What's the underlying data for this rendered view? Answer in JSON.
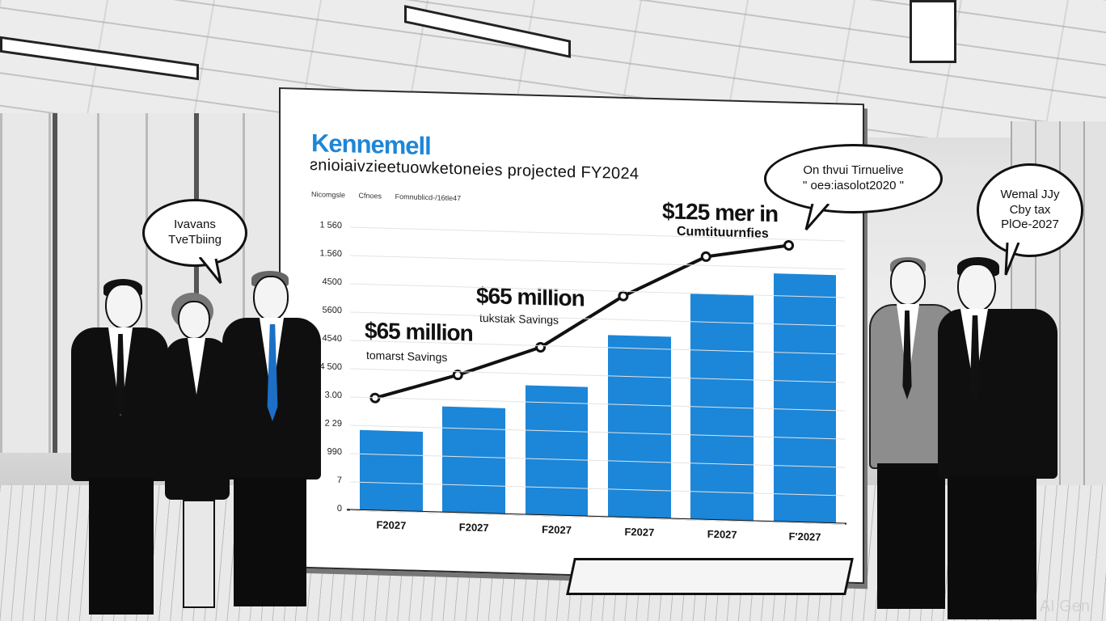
{
  "scene": {
    "description": "Business people viewing a projected bar chart in an office",
    "watermark": "AI Gen"
  },
  "screen": {
    "brand": "Kennemell",
    "headline": "ƨnioiaivzieetuowketoneies projected FY2024",
    "subline": [
      "Nicomgsle",
      "Cfnoes",
      "Fomnublicd-/16tle47"
    ]
  },
  "bubbles": [
    {
      "id": "left",
      "lines": [
        "Ivavans",
        "TveTbiing"
      ]
    },
    {
      "id": "center-right",
      "lines": [
        "On thvui Tirnuelive",
        "\" oeɘ:iasolot2020 \""
      ]
    },
    {
      "id": "far-right",
      "lines": [
        "Wemal JJy",
        "Cby tax",
        "PlOe-2027"
      ]
    }
  ],
  "colors": {
    "brand": "#1f86d6",
    "bar": "#1c86d8",
    "line": "#111111",
    "grid": "#e3e3e3"
  },
  "chart_data": {
    "type": "bar",
    "title": "Kennemell — projected FY2024",
    "subtitle": "Nicomgsle  Cfnoes  Fomnublicd-/16tle47",
    "xlabel": "",
    "ylabel": "",
    "y_tick_labels": [
      "0",
      "7",
      "990",
      "2 29",
      "3.00",
      "4 500",
      "4540",
      "5600",
      "4500",
      "1.560",
      "1 560"
    ],
    "ylim": [
      0,
      1560
    ],
    "grid": true,
    "legend": null,
    "categories": [
      "F2027",
      "F2027",
      "F2027",
      "F2027",
      "F2027",
      "F'2027"
    ],
    "series": [
      {
        "name": "Bars",
        "type": "bar",
        "values": [
          440,
          585,
          715,
          1005,
          1245,
          1370
        ]
      },
      {
        "name": "Cumulative line",
        "type": "line",
        "values": [
          620,
          760,
          925,
          1220,
          1450,
          1525
        ]
      }
    ],
    "annotations": [
      {
        "text": "$65 million",
        "subtext": "tomarst Savings",
        "near_category_index": 0
      },
      {
        "text": "$65 million",
        "subtext": "tukstak Savings",
        "near_category_index": 2
      },
      {
        "text": "$125 mer in",
        "subtext": "Cumtituurnfies",
        "near_category_index": 4
      }
    ]
  }
}
